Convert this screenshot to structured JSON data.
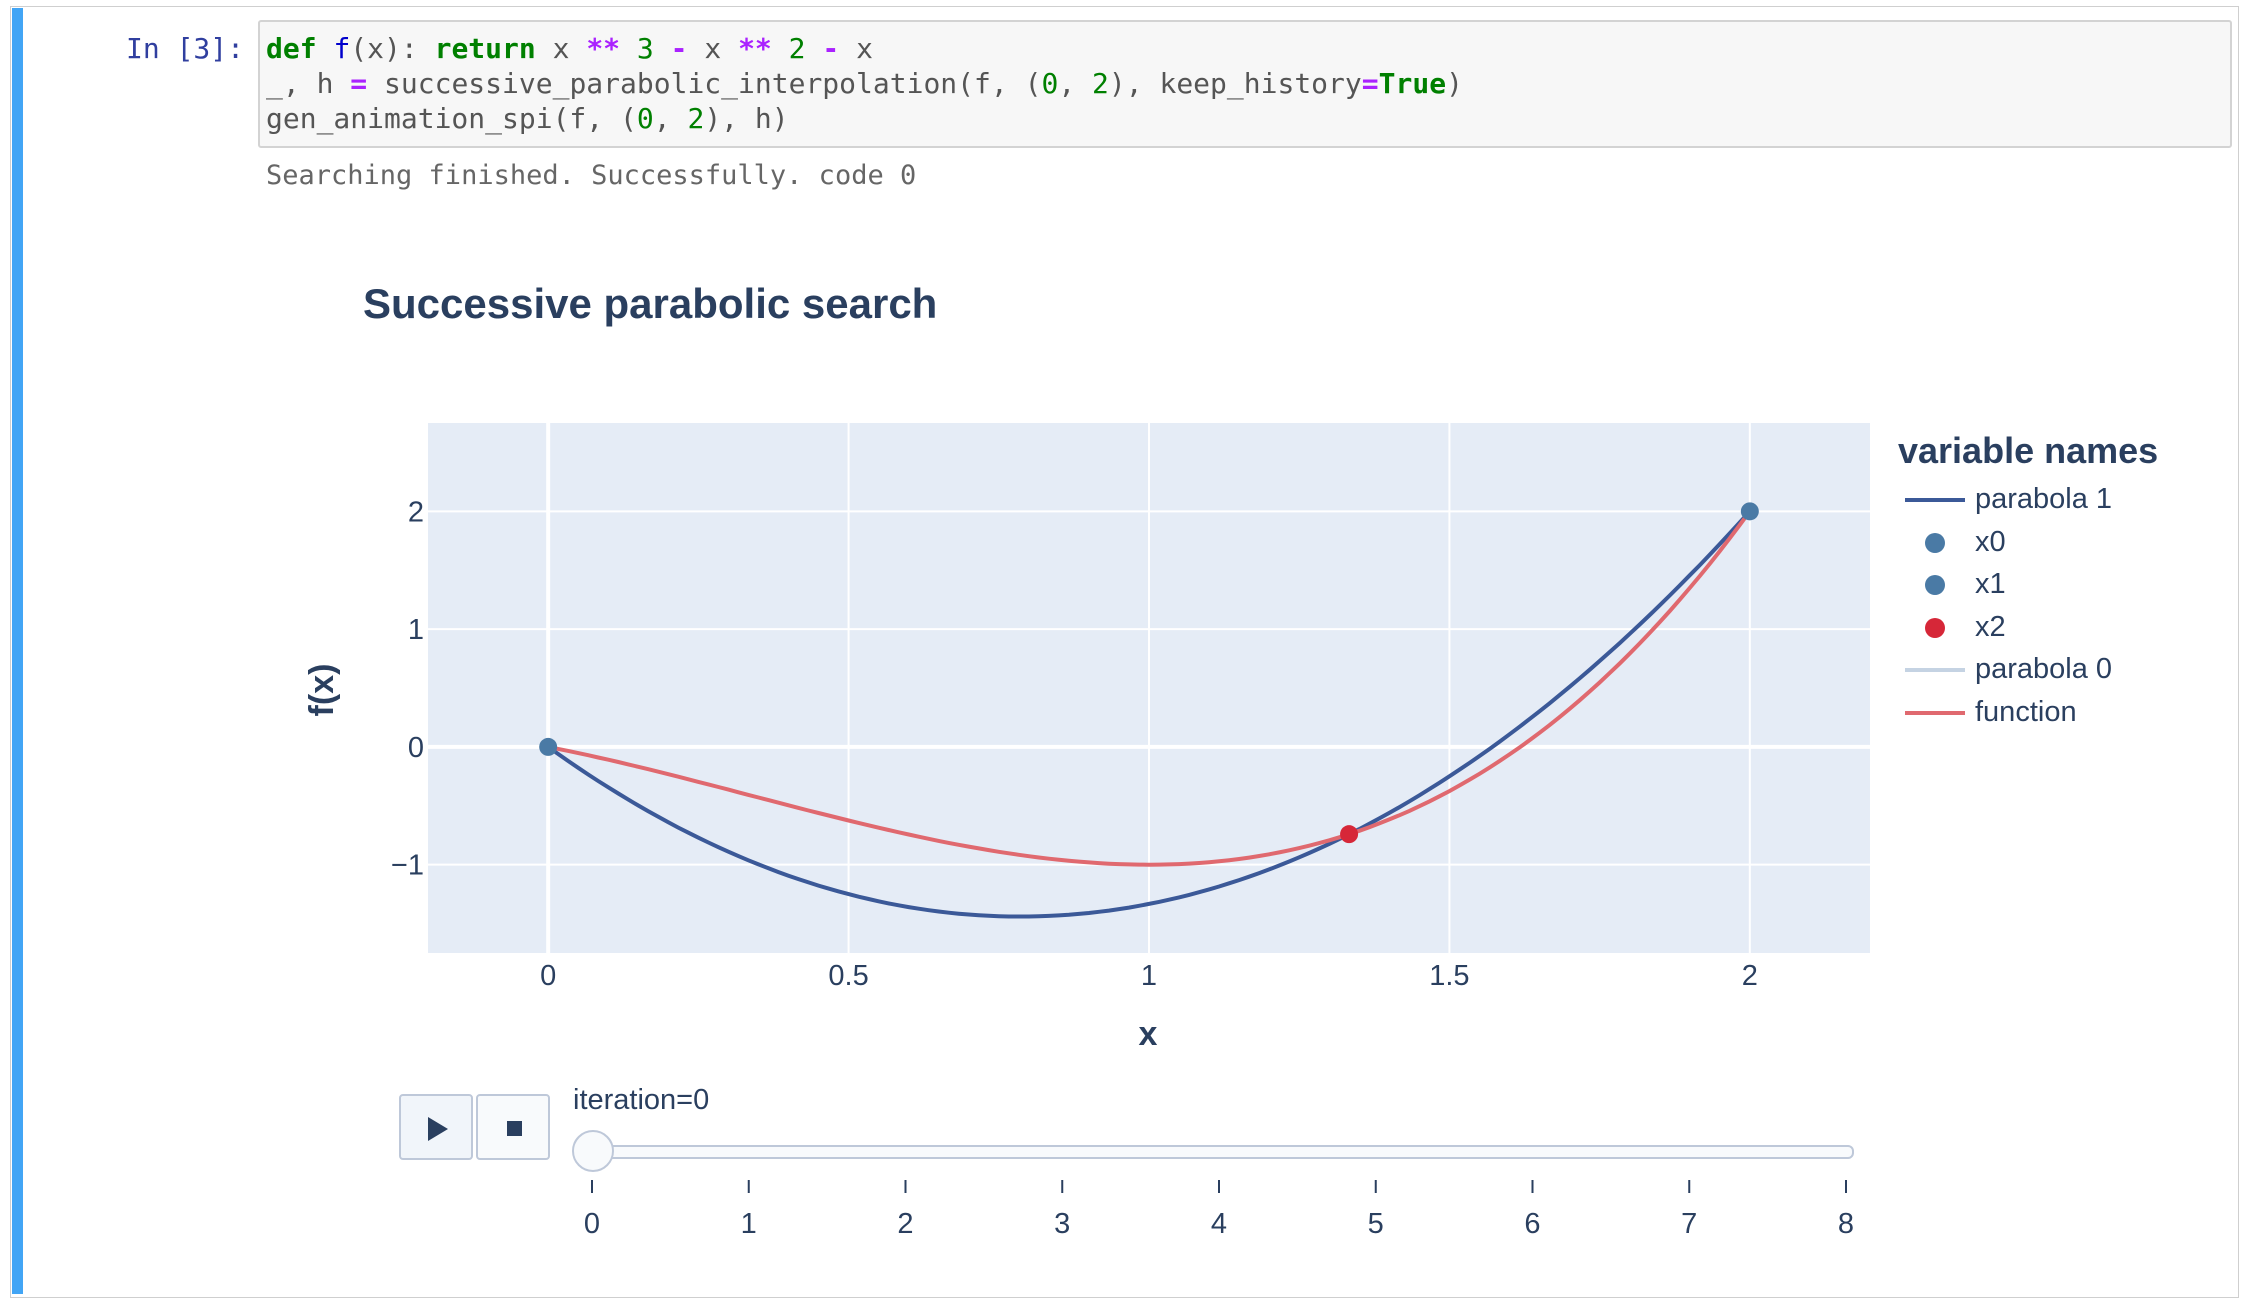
{
  "notebook": {
    "prompt": "In [3]:",
    "code_lines": [
      "def f(x): return x ** 3 - x ** 2 - x",
      "_, h = successive_parabolic_interpolation(f, (0, 2), keep_history=True)",
      "gen_animation_spi(f, (0, 2), h)"
    ],
    "output": "Searching finished. Successfully. code 0"
  },
  "colors": {
    "cell_bar": "#42a5f5",
    "plot_bg": "#e5ecf6",
    "parabola1": "#3b5998",
    "function": "#e0696f",
    "parabola0": "#c5d3e3",
    "point": "#4a7aa5",
    "x2_point": "#d62738"
  },
  "chart_data": {
    "type": "line",
    "title": "Successive parabolic search",
    "xlabel": "x",
    "ylabel": "f(x)",
    "xlim": [
      -0.2,
      2.2
    ],
    "ylim": [
      -1.75,
      2.75
    ],
    "x_ticks": [
      0,
      0.5,
      1,
      1.5,
      2
    ],
    "x_tick_labels": [
      "0",
      "0.5",
      "1",
      "1.5",
      "2"
    ],
    "y_ticks": [
      -1,
      0,
      1,
      2
    ],
    "y_tick_labels": [
      "−1",
      "0",
      "1",
      "2"
    ],
    "grid": true,
    "legend_title": "variable names",
    "legend_position": "right",
    "series": [
      {
        "name": "parabola 1",
        "kind": "line",
        "color": "#3b5998",
        "fn": "parabola1"
      },
      {
        "name": "x0",
        "kind": "marker",
        "color": "#4a7aa5",
        "x": 0,
        "y": 0
      },
      {
        "name": "x1",
        "kind": "marker",
        "color": "#4a7aa5",
        "x": 2,
        "y": 2
      },
      {
        "name": "x2",
        "kind": "marker",
        "color": "#d62738",
        "x": 1.333,
        "y": -0.741
      },
      {
        "name": "parabola 0",
        "kind": "line",
        "color": "#c5d3e3",
        "fn": "none"
      },
      {
        "name": "function",
        "kind": "line",
        "color": "#e0696f",
        "fn": "function"
      }
    ]
  },
  "animation": {
    "play_label": "play",
    "stop_label": "stop",
    "slider_label": "iteration=0",
    "current": 0,
    "steps": [
      "0",
      "1",
      "2",
      "3",
      "4",
      "5",
      "6",
      "7",
      "8"
    ]
  }
}
